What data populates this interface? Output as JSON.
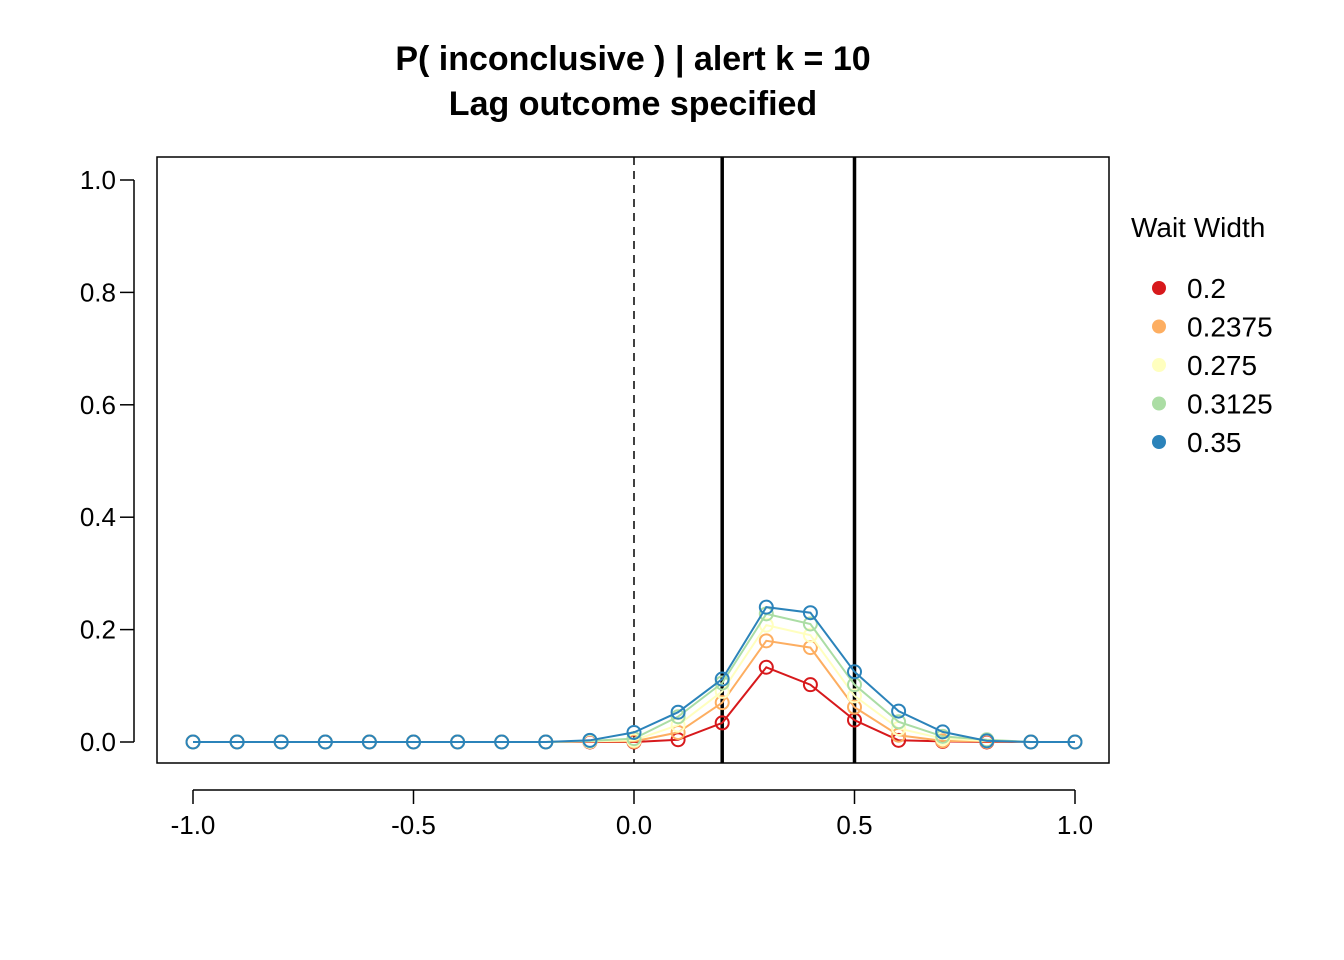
{
  "chart_data": {
    "type": "line",
    "title": "P( inconclusive ) | alert k = 10",
    "subtitle": "Lag outcome specified",
    "xlabel": "",
    "ylabel": "",
    "xlim": [
      -1.0,
      1.0
    ],
    "ylim": [
      0.0,
      1.0
    ],
    "x_ticks": [
      "-1.0",
      "-0.5",
      "0.0",
      "0.5",
      "1.0"
    ],
    "y_ticks": [
      "0.0",
      "0.2",
      "0.4",
      "0.6",
      "0.8",
      "1.0"
    ],
    "grid": false,
    "reference_lines": {
      "dashed": [
        0.0
      ],
      "solid": [
        0.2,
        0.5
      ]
    },
    "legend": {
      "title": "Wait Width",
      "placement": "right"
    },
    "x": [
      -1.0,
      -0.9,
      -0.8,
      -0.7,
      -0.6,
      -0.5,
      -0.4,
      -0.3,
      -0.2,
      -0.1,
      0.0,
      0.1,
      0.2,
      0.3,
      0.4,
      0.5,
      0.6,
      0.7,
      0.8,
      0.9,
      1.0
    ],
    "series": [
      {
        "name": "0.2",
        "color": "#d7191c",
        "values": [
          0,
          0,
          0,
          0,
          0,
          0,
          0,
          0,
          0,
          0,
          0.0,
          0.004,
          0.034,
          0.133,
          0.102,
          0.039,
          0.003,
          0.001,
          0,
          0,
          0
        ]
      },
      {
        "name": "0.2375",
        "color": "#fdae61",
        "values": [
          0,
          0,
          0,
          0,
          0,
          0,
          0,
          0,
          0,
          0.001,
          0.001,
          0.017,
          0.07,
          0.18,
          0.168,
          0.062,
          0.012,
          0.002,
          0.001,
          0,
          0
        ]
      },
      {
        "name": "0.275",
        "color": "#ffffbf",
        "values": [
          0,
          0,
          0,
          0,
          0,
          0,
          0,
          0,
          0,
          0.001,
          0.003,
          0.03,
          0.09,
          0.208,
          0.19,
          0.082,
          0.024,
          0.006,
          0.002,
          0,
          0
        ]
      },
      {
        "name": "0.3125",
        "color": "#abdda4",
        "values": [
          0,
          0,
          0,
          0,
          0,
          0,
          0,
          0,
          0,
          0.002,
          0.006,
          0.045,
          0.105,
          0.228,
          0.21,
          0.102,
          0.036,
          0.01,
          0.004,
          0,
          0
        ]
      },
      {
        "name": "0.35",
        "color": "#2b83ba",
        "values": [
          0,
          0,
          0,
          0,
          0,
          0,
          0,
          0,
          0,
          0.003,
          0.017,
          0.053,
          0.112,
          0.24,
          0.23,
          0.125,
          0.055,
          0.018,
          0.002,
          0,
          0
        ]
      }
    ]
  }
}
